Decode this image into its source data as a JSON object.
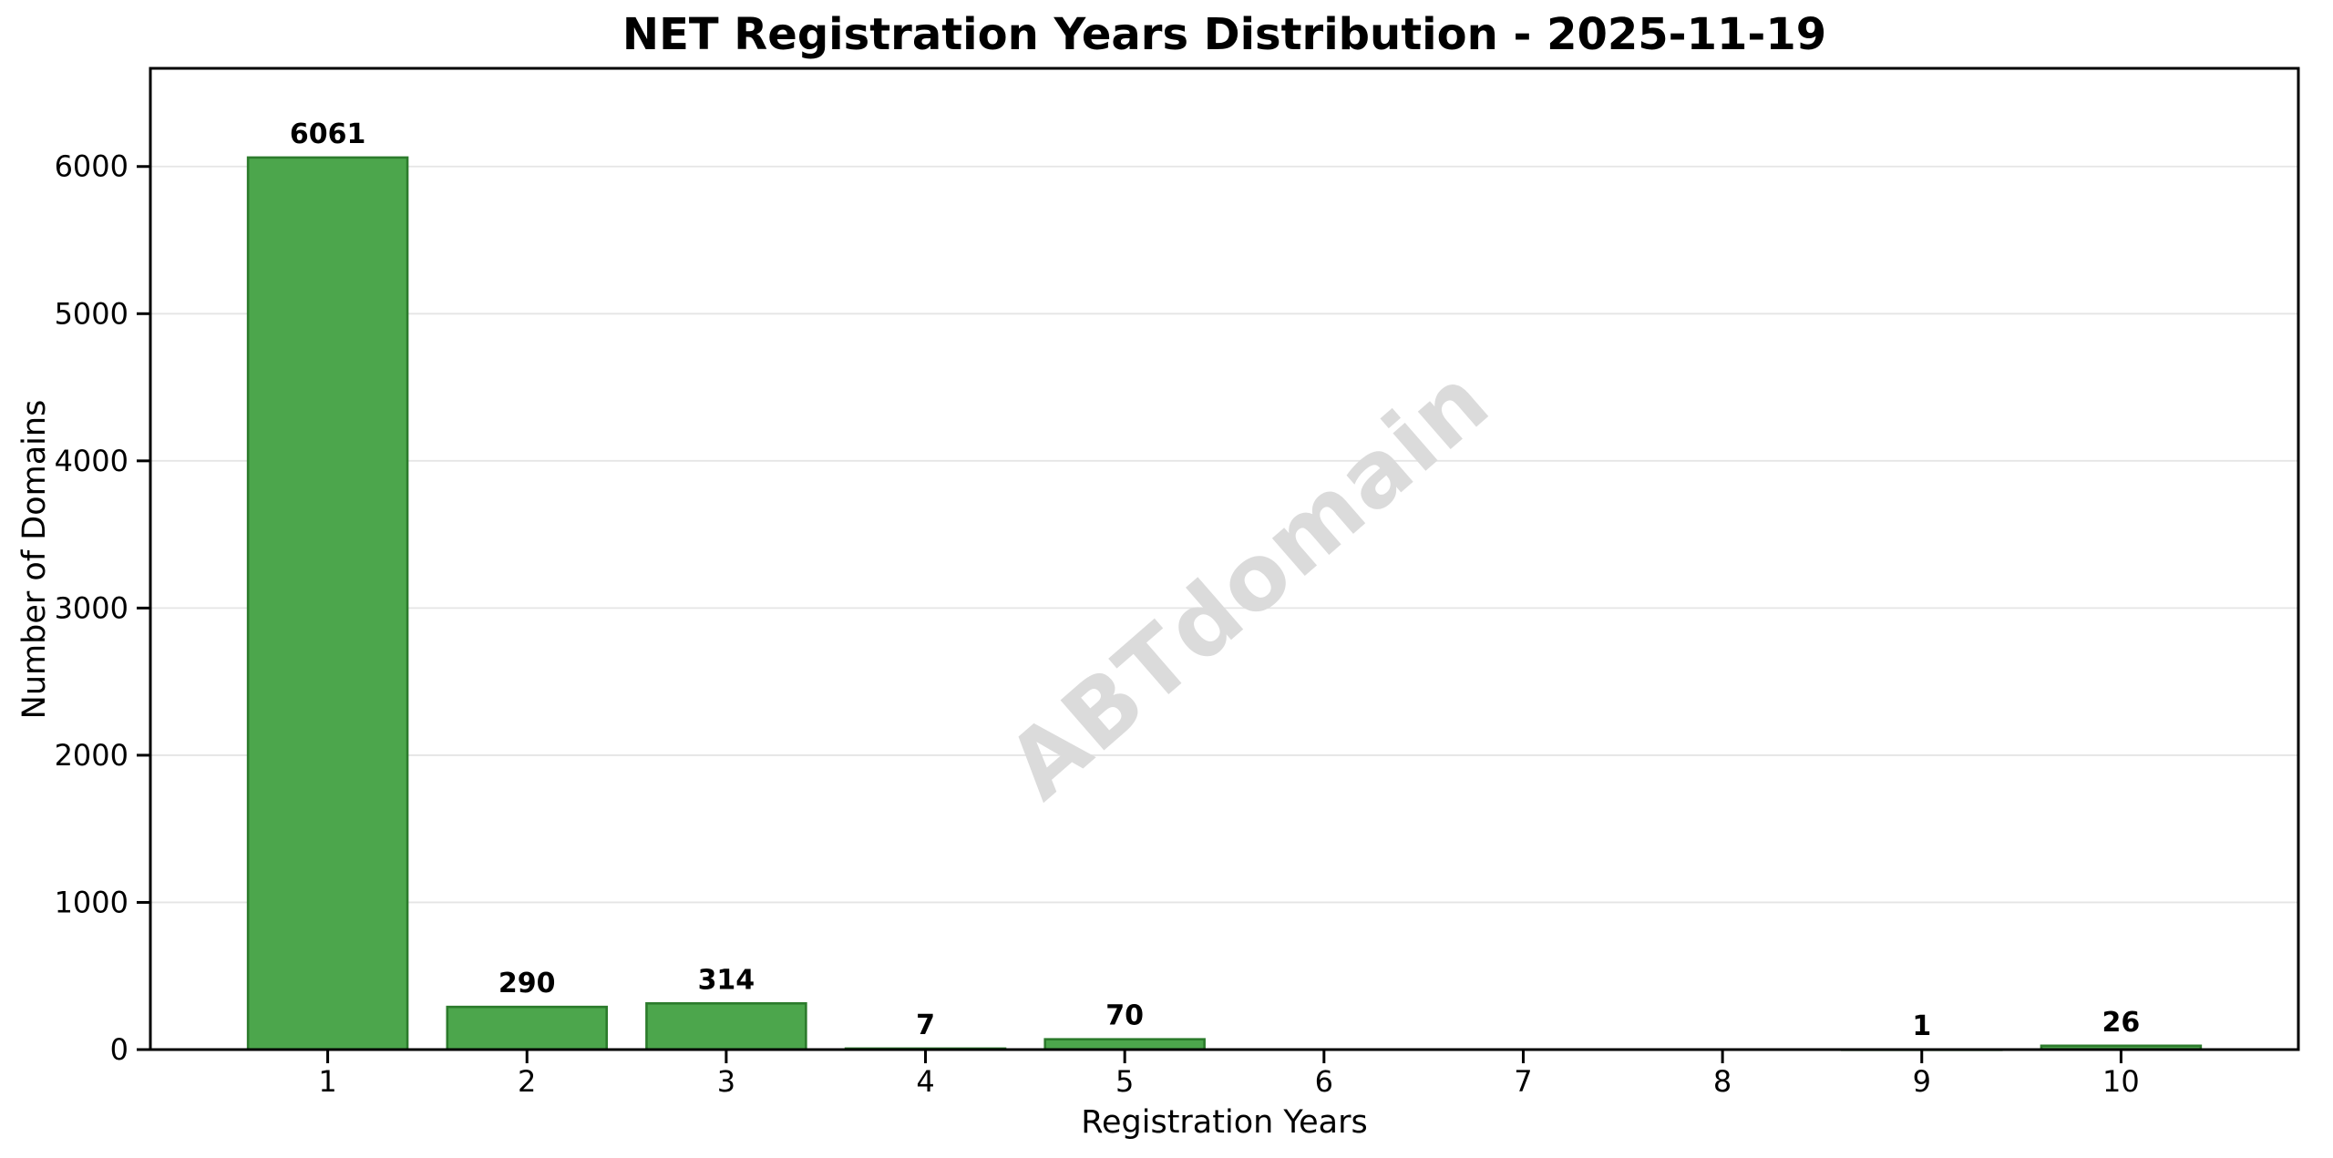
{
  "figure_title": "NET Registration Years Distribution - 2025-11-19",
  "chart_data": {
    "type": "bar",
    "title": "NET Registration Years Distribution - 2025-11-19",
    "xlabel": "Registration Years",
    "ylabel": "Number of Domains",
    "categories": [
      "1",
      "2",
      "3",
      "4",
      "5",
      "6",
      "7",
      "8",
      "9",
      "10"
    ],
    "values": [
      6061,
      290,
      314,
      7,
      70,
      0,
      0,
      0,
      1,
      26
    ],
    "bar_value_labels": [
      "6061",
      "290",
      "314",
      "7",
      "70",
      "",
      "",
      "",
      "1",
      "26"
    ],
    "ylim": [
      0,
      6667
    ],
    "yticks": [
      0,
      1000,
      2000,
      3000,
      4000,
      5000,
      6000
    ],
    "grid": "horizontal",
    "legend": "none",
    "watermark": {
      "text": "ABTdomain",
      "rotation_deg": -41
    },
    "colors": {
      "bar_fill": "#4ca64c",
      "bar_edge": "#2c7b2c",
      "grid_line": "#e5e5e5",
      "spine": "#000000",
      "text": "#000000",
      "watermark": "#dbdbdb",
      "background": "#ffffff"
    }
  }
}
